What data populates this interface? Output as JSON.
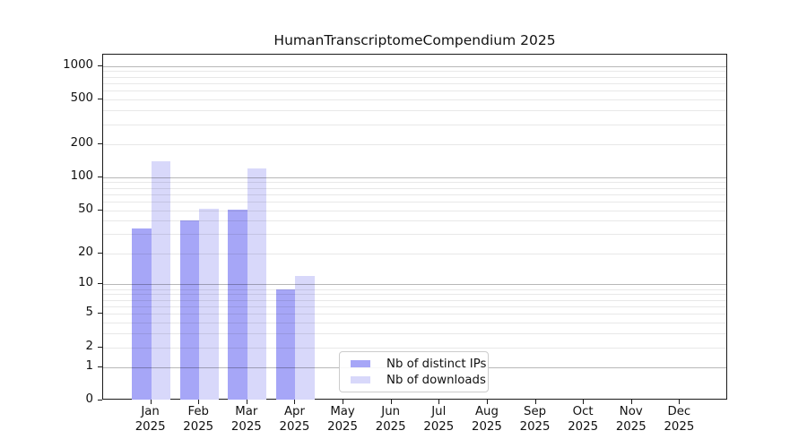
{
  "chart_data": {
    "type": "bar",
    "title": "HumanTranscriptomeCompendium 2025",
    "categories": [
      "Jan",
      "Feb",
      "Mar",
      "Apr",
      "May",
      "Jun",
      "Jul",
      "Aug",
      "Sep",
      "Oct",
      "Nov",
      "Dec"
    ],
    "year_label": "2025",
    "series": [
      {
        "name": "Nb of distinct IPs",
        "color": "#a6a6f7",
        "values": [
          34,
          40,
          51,
          9,
          0,
          0,
          0,
          0,
          0,
          0,
          0,
          0
        ]
      },
      {
        "name": "Nb of downloads",
        "color": "#d8d8fa",
        "values": [
          140,
          52,
          120,
          12,
          0,
          0,
          0,
          0,
          0,
          0,
          0,
          0
        ]
      }
    ],
    "xlabel": "",
    "ylabel": "",
    "y_scale": "log1p",
    "ylim": [
      0,
      1270
    ],
    "y_ticks": [
      0,
      1,
      2,
      5,
      10,
      20,
      50,
      100,
      200,
      500,
      1000
    ],
    "y_major_gridlines": [
      1,
      10,
      100,
      1000
    ],
    "y_minor_gridlines": [
      2,
      3,
      4,
      5,
      6,
      7,
      8,
      9,
      20,
      30,
      40,
      50,
      60,
      70,
      80,
      90,
      200,
      300,
      400,
      500,
      600,
      700,
      800,
      900
    ],
    "grid": true,
    "legend_position": "inside-lower-center"
  }
}
